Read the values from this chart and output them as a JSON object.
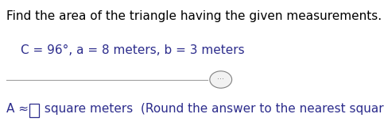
{
  "line1": "Find the area of the triangle having the given measurements.",
  "line2_full": "C = 96°, a = 8 meters, b = 3 meters",
  "line3_prefix": "A ≈ ",
  "line3_suffix": " square meters  (Round the answer to the nearest square unit.)",
  "background_color": "#ffffff",
  "text_color": "#2c2c8c",
  "title_color": "#000000",
  "box_color": "#2c2c8c",
  "line_color": "#a0a0a0",
  "dots_color": "#808080",
  "font_size_title": 11,
  "font_size_body": 11
}
